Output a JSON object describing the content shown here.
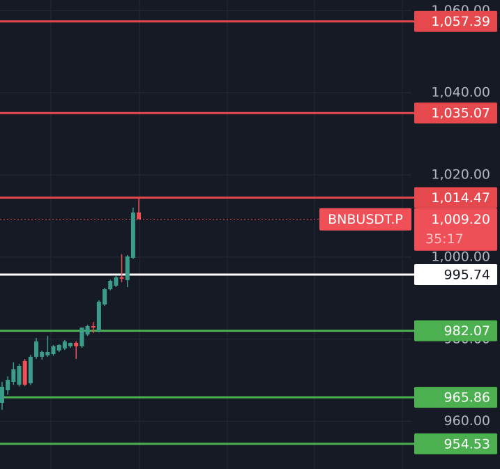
{
  "chart_data": {
    "type": "candlestick",
    "symbol": "BNBUSDT.P",
    "countdown": "35:17",
    "last_price": {
      "value": 1009.2,
      "label": "1,009.20"
    },
    "categories": [
      null,
      null,
      null,
      null,
      null,
      null,
      null,
      null,
      null,
      null,
      null,
      null,
      null,
      null,
      null,
      null,
      null,
      null,
      null,
      null,
      null,
      null,
      null,
      null,
      null
    ],
    "open": [
      964.52,
      967.58,
      969.61,
      968.94,
      974.71,
      969.27,
      975.73,
      975.73,
      976.07,
      976.4,
      977.25,
      977.76,
      978.27,
      979.12,
      978.27,
      981.16,
      983.19,
      982.01,
      988.46,
      992.19,
      993.04,
      995.08,
      994.4,
      999.83,
      1010.86
    ],
    "high": [
      969.61,
      970.97,
      974.37,
      974.0,
      975.2,
      976.2,
      980.31,
      977.2,
      980.82,
      978.6,
      978.8,
      979.8,
      979.2,
      979.5,
      982.2,
      983.5,
      984.21,
      989.5,
      992.5,
      994.5,
      995.4,
      1000.68,
      1000.5,
      1012.05,
      1014.47
    ],
    "low": [
      962.82,
      966.5,
      968.9,
      968.5,
      968.6,
      968.9,
      975.2,
      975.0,
      975.7,
      976.0,
      976.9,
      977.4,
      977.9,
      975.22,
      977.9,
      980.8,
      981.5,
      981.7,
      988.1,
      991.9,
      992.7,
      993.89,
      992.7,
      999.5,
      1009.2
    ],
    "close": [
      968.43,
      970.12,
      972.67,
      973.52,
      968.94,
      975.73,
      979.46,
      976.91,
      976.91,
      978.27,
      978.61,
      979.46,
      979.12,
      978.27,
      982.85,
      983.19,
      982.85,
      989.14,
      992.19,
      994.23,
      995.08,
      994.74,
      1000.17,
      1010.86,
      1009.2
    ],
    "up_color": "#3b9c8c",
    "down_color": "#ef4f56",
    "ylim": [
      948.4,
      1062.6
    ],
    "yticks": [
      {
        "value": 960,
        "label": "960.00"
      },
      {
        "value": 980,
        "label": "980.00"
      },
      {
        "value": 1000,
        "label": "1,000.00"
      },
      {
        "value": 1020,
        "label": "1,020.00"
      },
      {
        "value": 1040,
        "label": "1,040.00"
      },
      {
        "value": 1060,
        "label": "1,060.00"
      }
    ],
    "grid": true,
    "levels": [
      {
        "value": 1057.39,
        "label": "1,057.39",
        "color": "#e5484d"
      },
      {
        "value": 1035.07,
        "label": "1,035.07",
        "color": "#e5484d"
      },
      {
        "value": 1014.47,
        "label": "1,014.47",
        "color": "#e5484d"
      },
      {
        "value": 995.74,
        "label": "995.74",
        "color": "#ffffff"
      },
      {
        "value": 982.07,
        "label": "982.07",
        "color": "#4caf50"
      },
      {
        "value": 965.86,
        "label": "965.86",
        "color": "#4caf50"
      },
      {
        "value": 954.53,
        "label": "954.53",
        "color": "#4caf50"
      }
    ]
  }
}
